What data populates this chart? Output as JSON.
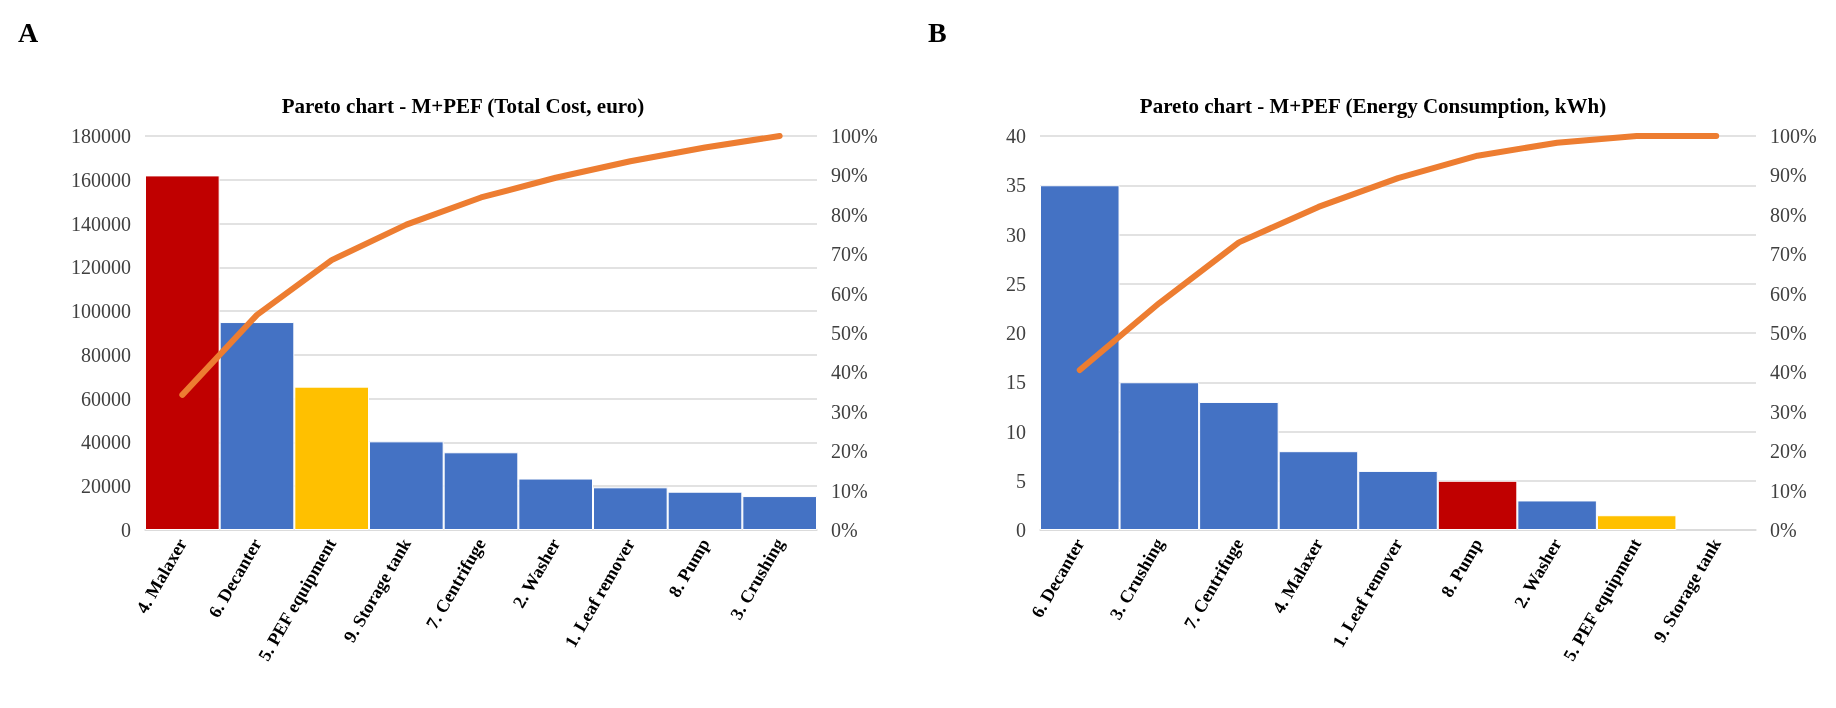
{
  "chart_data": [
    {
      "type": "bar",
      "title": "Pareto chart - M+PEF (Total Cost, euro)",
      "annotations": [
        "A"
      ],
      "categories": [
        "4. Malaxer",
        "6. Decanter",
        "5. PEF equipment",
        "9. Storage tank",
        "7. Centrifuge",
        "2. Washer",
        "1. Leaf remover",
        "8. Pump",
        "3. Crushing"
      ],
      "series": [
        {
          "type": "bar",
          "colors": [
            "#c00000",
            "#4472c4",
            "#ffc000",
            "#4472c4",
            "#4472c4",
            "#4472c4",
            "#4472c4",
            "#4472c4",
            "#4472c4"
          ],
          "values": [
            162000,
            95000,
            65500,
            40500,
            35500,
            23500,
            19500,
            17500,
            15500
          ]
        },
        {
          "type": "line",
          "axis": "y2",
          "color": "#ed7d31",
          "values": [
            34.3,
            54.6,
            68.5,
            77.5,
            84.4,
            89.4,
            93.6,
            97.1,
            100
          ]
        }
      ],
      "ylim": [
        0,
        180000
      ],
      "yticks": [
        0,
        20000,
        40000,
        60000,
        80000,
        100000,
        120000,
        140000,
        160000,
        180000
      ],
      "y2lim": [
        0,
        100
      ],
      "y2ticks": [
        {
          "value": 0,
          "label": "0%"
        },
        {
          "value": 10,
          "label": "10%"
        },
        {
          "value": 20,
          "label": "20%"
        },
        {
          "value": 30,
          "label": "30%"
        },
        {
          "value": 40,
          "label": "40%"
        },
        {
          "value": 50,
          "label": "50%"
        },
        {
          "value": 60,
          "label": "60%"
        },
        {
          "value": 70,
          "label": "70%"
        },
        {
          "value": 80,
          "label": "80%"
        },
        {
          "value": 90,
          "label": "90%"
        },
        {
          "value": 100,
          "label": "100%"
        }
      ],
      "grid": "y"
    },
    {
      "type": "bar",
      "title": "Pareto chart - M+PEF (Energy Consumption, kWh)",
      "annotations": [
        "B"
      ],
      "categories": [
        "6. Decanter",
        "3. Crushing",
        "7. Centrifuge",
        "4. Malaxer",
        "1. Leaf remover",
        "8. Pump",
        "2. Washer",
        "5. PEF equipment",
        "9. Storage tank"
      ],
      "series": [
        {
          "type": "bar",
          "colors": [
            "#4472c4",
            "#4472c4",
            "#4472c4",
            "#4472c4",
            "#4472c4",
            "#c00000",
            "#4472c4",
            "#ffc000",
            "#4472c4"
          ],
          "values": [
            35,
            15,
            13,
            8,
            6,
            5,
            3,
            1.5,
            0
          ]
        },
        {
          "type": "line",
          "axis": "y2",
          "color": "#ed7d31",
          "values": [
            40.6,
            57.6,
            73,
            82,
            89.3,
            95,
            98.3,
            100,
            100
          ]
        }
      ],
      "ylim": [
        0,
        40
      ],
      "yticks": [
        0,
        5,
        10,
        15,
        20,
        25,
        30,
        35,
        40
      ],
      "y2lim": [
        0,
        100
      ],
      "y2ticks": [
        {
          "value": 0,
          "label": "0%"
        },
        {
          "value": 10,
          "label": "10%"
        },
        {
          "value": 20,
          "label": "20%"
        },
        {
          "value": 30,
          "label": "30%"
        },
        {
          "value": 40,
          "label": "40%"
        },
        {
          "value": 50,
          "label": "50%"
        },
        {
          "value": 60,
          "label": "60%"
        },
        {
          "value": 70,
          "label": "70%"
        },
        {
          "value": 80,
          "label": "80%"
        },
        {
          "value": 90,
          "label": "90%"
        },
        {
          "value": 100,
          "label": "100%"
        }
      ],
      "grid": "y"
    }
  ]
}
